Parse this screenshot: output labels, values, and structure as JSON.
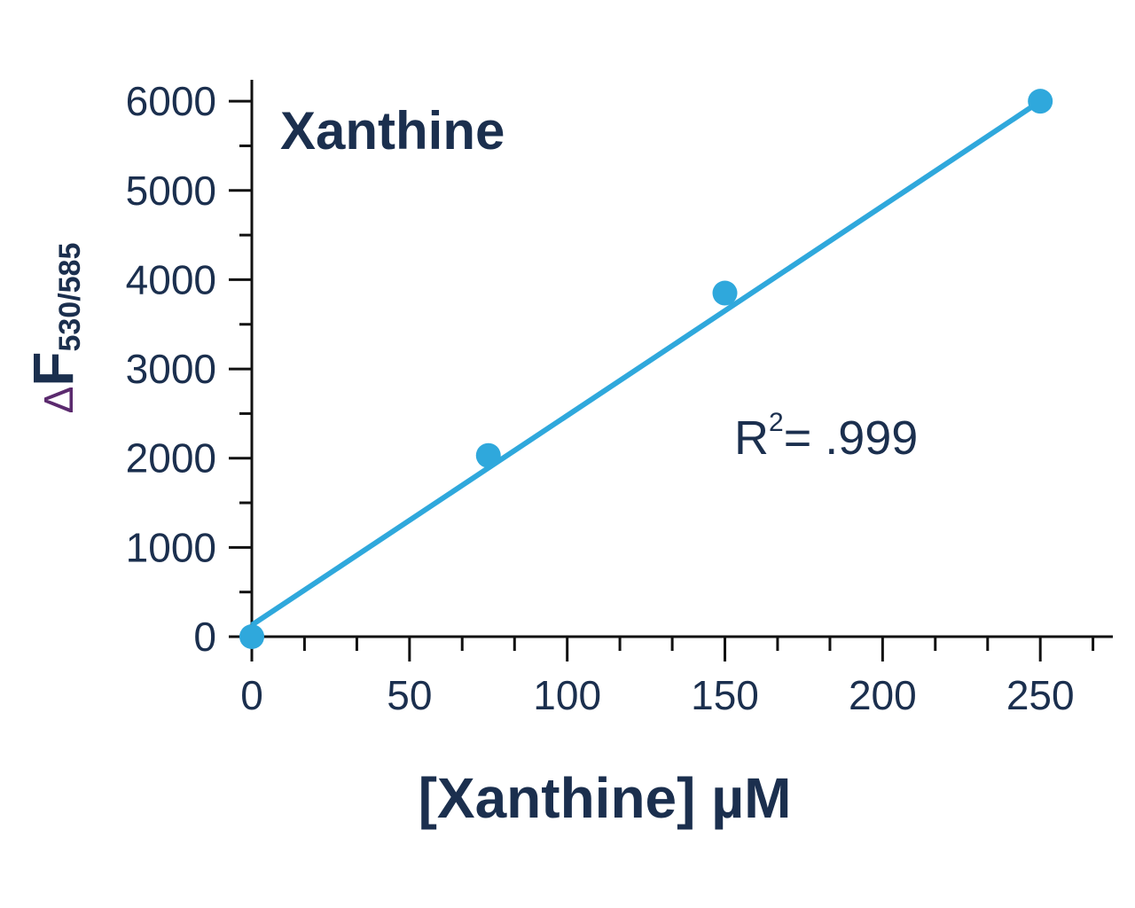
{
  "chart_data": {
    "type": "scatter",
    "title": "Xanthine",
    "x_label": "[Xanthine] µM",
    "y_label": {
      "symbol": "Δ",
      "main": "F",
      "sub": "530/585"
    },
    "annotation": {
      "base": "R",
      "sup": "2",
      "rest": "= .999"
    },
    "x": [
      0,
      75,
      150,
      250
    ],
    "values": [
      0,
      2030,
      3850,
      6000
    ],
    "color": "#2fa8dc",
    "fit": {
      "x": [
        0,
        250
      ],
      "y": [
        130,
        6000
      ]
    },
    "xlim": [
      0,
      273
    ],
    "ylim": [
      0,
      6240
    ],
    "xticks": [
      0,
      50,
      100,
      150,
      200,
      250
    ],
    "yticks": [
      0,
      1000,
      2000,
      3000,
      4000,
      5000,
      6000
    ],
    "xminor_ticks": [
      16.7,
      33.3,
      66.7,
      83.3,
      116.7,
      133.3,
      166.7,
      183.3,
      216.7,
      233.3,
      266.7
    ],
    "yminor_ticks": [
      500,
      1500,
      2500,
      3500,
      4500,
      5500
    ]
  }
}
